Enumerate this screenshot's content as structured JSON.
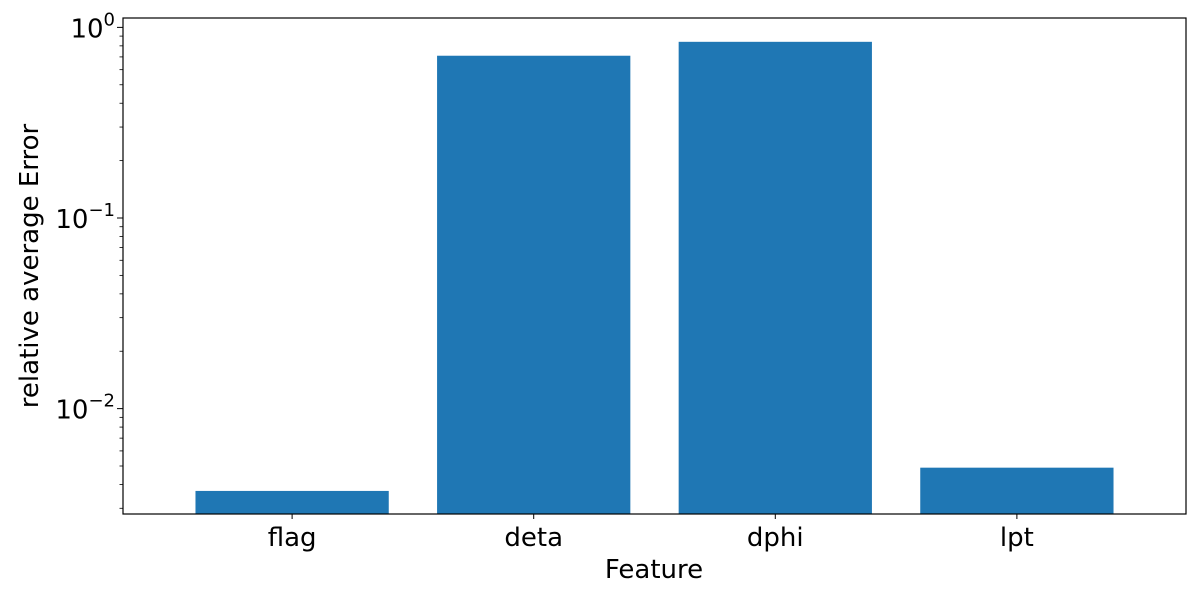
{
  "chart_data": {
    "type": "bar",
    "categories": [
      "flag",
      "deta",
      "dphi",
      "lpt"
    ],
    "values": [
      0.0037,
      0.71,
      0.84,
      0.0049
    ],
    "title": "",
    "xlabel": "Feature",
    "ylabel": "relative average Error",
    "yscale": "log",
    "ylim": [
      0.0028,
      1.12
    ],
    "yticks": [
      {
        "value": 0.01,
        "base": "10",
        "exp": "−2"
      },
      {
        "value": 0.1,
        "base": "10",
        "exp": "−1"
      },
      {
        "value": 1,
        "base": "10",
        "exp": "0"
      }
    ],
    "grid": false,
    "bar_color": "#1f77b4"
  }
}
